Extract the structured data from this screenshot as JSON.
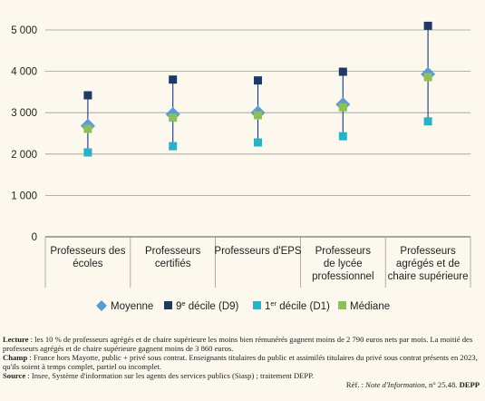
{
  "chart_data": {
    "type": "scatter",
    "title": "",
    "xlabel": "",
    "ylabel": "",
    "ylim": [
      0,
      5000
    ],
    "yticks": [
      0,
      1000,
      2000,
      3000,
      4000,
      5000
    ],
    "ytick_labels": [
      "0",
      "1 000",
      "2 000",
      "3 000",
      "4 000",
      "5 000"
    ],
    "grid": true,
    "legend_position": "bottom",
    "categories": [
      [
        "Professeurs des",
        "écoles"
      ],
      [
        "Professeurs",
        "certifiés"
      ],
      [
        "Professeurs d'EPS"
      ],
      [
        "Professeurs",
        "de lycée",
        "professionnel"
      ],
      [
        "Professeurs",
        "agrégés et de",
        "chaire supérieure"
      ]
    ],
    "range": {
      "from": "d1",
      "to": "d9",
      "color": "#1f3864"
    },
    "series": [
      {
        "key": "moyenne",
        "marker": "diamond",
        "color": "#5b9bd5",
        "values": [
          2680,
          2960,
          3000,
          3200,
          3930
        ]
      },
      {
        "key": "d9",
        "marker": "square",
        "color": "#1f3864",
        "values": [
          3420,
          3800,
          3780,
          3990,
          5100
        ]
      },
      {
        "key": "d1",
        "marker": "square",
        "color": "#2ab0c7",
        "values": [
          2040,
          2190,
          2280,
          2430,
          2790
        ]
      },
      {
        "key": "mediane",
        "marker": "square",
        "color": "#8dbf5b",
        "values": [
          2610,
          2880,
          2940,
          3130,
          3860
        ]
      }
    ]
  },
  "legend": {
    "moyenne": "Moyenne",
    "d9_pre": "9",
    "d9_sup": "e",
    "d9_post": " décile (D9)",
    "d1_pre": "1",
    "d1_sup": "er",
    "d1_post": " décile (D1)",
    "mediane": "Médiane"
  },
  "notes": {
    "lecture_label": "Lecture",
    "lecture_text": " : les 10 % de professeurs agrégés et de chaire supérieure les moins bien rémunérés gagnent moins de 2 790 euros nets par mois. La moitié des professeurs agrégés et de chaire supérieure gagnent moins de 3 860 euros.",
    "champ_label": "Champ",
    "champ_text": " : France hors Mayotte, public + privé sous contrat. Enseignants titulaires du public et assimilés titulaires du privé sous contrat présents en 2023, qu'ils soient à temps complet, partiel ou incomplet.",
    "source_label": "Source",
    "source_text": " : Insee, Système d'information sur les agents des services publics (Siasp) ; traitement DEPP.",
    "ref_prefix": "Réf. : ",
    "ref_title": "Note d'Information",
    "ref_number": ", n° 25.48. ",
    "ref_org": "DEPP"
  },
  "colors": {
    "background": "#fdf8ee",
    "grid": "#9a9a9a",
    "axis": "#555555"
  }
}
